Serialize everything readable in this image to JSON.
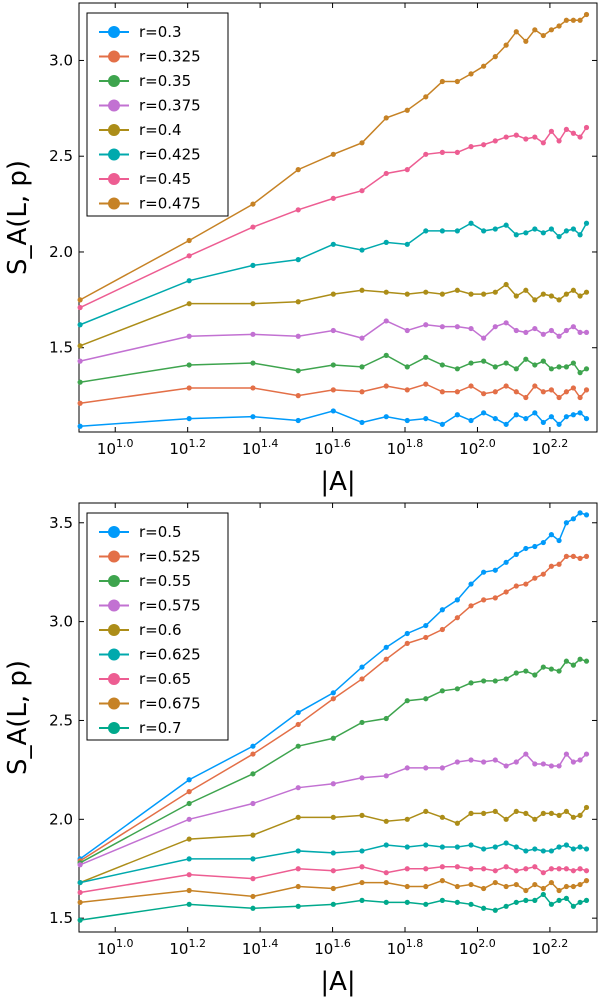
{
  "chart_data": [
    {
      "type": "line",
      "title": "",
      "xlabel": "|A|",
      "ylabel": "S_A(L, p)",
      "xscale": "log",
      "x_log10_range": [
        0.9,
        2.33
      ],
      "ylim": [
        1.06,
        3.3
      ],
      "x_ticks": [
        {
          "exp": 1.0,
          "base": "10",
          "sup": "1.0"
        },
        {
          "exp": 1.2,
          "base": "10",
          "sup": "1.2"
        },
        {
          "exp": 1.4,
          "base": "10",
          "sup": "1.4"
        },
        {
          "exp": 1.6,
          "base": "10",
          "sup": "1.6"
        },
        {
          "exp": 1.8,
          "base": "10",
          "sup": "1.8"
        },
        {
          "exp": 2.0,
          "base": "10",
          "sup": "2.0"
        },
        {
          "exp": 2.2,
          "base": "10",
          "sup": "2.2"
        }
      ],
      "y_ticks": [
        {
          "value": 1.5,
          "label": "1.5"
        },
        {
          "value": 2.0,
          "label": "2.0"
        },
        {
          "value": 2.5,
          "label": "2.5"
        },
        {
          "value": 3.0,
          "label": "3.0"
        }
      ],
      "legend_position": "top-left",
      "x": [
        8,
        16,
        24,
        32,
        40,
        48,
        56,
        64,
        72,
        80,
        88,
        96,
        104,
        112,
        120,
        128,
        136,
        144,
        152,
        160,
        168,
        176,
        184,
        192,
        200
      ],
      "series": [
        {
          "name": "r=0.3",
          "color": "#009AFA",
          "values": [
            1.09,
            1.13,
            1.14,
            1.12,
            1.17,
            1.11,
            1.14,
            1.12,
            1.13,
            1.1,
            1.15,
            1.12,
            1.16,
            1.13,
            1.1,
            1.15,
            1.13,
            1.16,
            1.11,
            1.14,
            1.1,
            1.14,
            1.15,
            1.16,
            1.13
          ]
        },
        {
          "name": "r=0.325",
          "color": "#E36F47",
          "values": [
            1.21,
            1.29,
            1.29,
            1.25,
            1.28,
            1.27,
            1.3,
            1.28,
            1.31,
            1.27,
            1.27,
            1.3,
            1.26,
            1.27,
            1.3,
            1.27,
            1.24,
            1.3,
            1.27,
            1.28,
            1.24,
            1.27,
            1.29,
            1.24,
            1.28
          ]
        },
        {
          "name": "r=0.35",
          "color": "#3EA44E",
          "values": [
            1.32,
            1.41,
            1.42,
            1.38,
            1.41,
            1.4,
            1.46,
            1.4,
            1.45,
            1.41,
            1.39,
            1.42,
            1.43,
            1.4,
            1.42,
            1.39,
            1.44,
            1.41,
            1.43,
            1.39,
            1.4,
            1.4,
            1.42,
            1.37,
            1.39
          ]
        },
        {
          "name": "r=0.375",
          "color": "#C271D2",
          "values": [
            1.43,
            1.56,
            1.57,
            1.56,
            1.59,
            1.55,
            1.64,
            1.59,
            1.62,
            1.61,
            1.61,
            1.6,
            1.55,
            1.61,
            1.63,
            1.59,
            1.58,
            1.6,
            1.57,
            1.59,
            1.56,
            1.59,
            1.61,
            1.58,
            1.58
          ]
        },
        {
          "name": "r=0.4",
          "color": "#AC8D18",
          "values": [
            1.51,
            1.73,
            1.73,
            1.74,
            1.78,
            1.8,
            1.79,
            1.78,
            1.79,
            1.78,
            1.8,
            1.78,
            1.78,
            1.79,
            1.83,
            1.77,
            1.8,
            1.75,
            1.78,
            1.77,
            1.75,
            1.78,
            1.8,
            1.77,
            1.79
          ]
        },
        {
          "name": "r=0.425",
          "color": "#00A9AD",
          "values": [
            1.62,
            1.85,
            1.93,
            1.96,
            2.04,
            2.01,
            2.05,
            2.04,
            2.11,
            2.11,
            2.11,
            2.15,
            2.11,
            2.12,
            2.14,
            2.09,
            2.1,
            2.12,
            2.1,
            2.12,
            2.08,
            2.11,
            2.12,
            2.09,
            2.15
          ]
        },
        {
          "name": "r=0.45",
          "color": "#ED5D92",
          "values": [
            1.71,
            1.98,
            2.13,
            2.22,
            2.28,
            2.32,
            2.41,
            2.43,
            2.51,
            2.52,
            2.52,
            2.55,
            2.56,
            2.58,
            2.6,
            2.61,
            2.59,
            2.6,
            2.57,
            2.63,
            2.58,
            2.64,
            2.62,
            2.6,
            2.65
          ]
        },
        {
          "name": "r=0.475",
          "color": "#C68225",
          "values": [
            1.75,
            2.06,
            2.25,
            2.43,
            2.51,
            2.57,
            2.7,
            2.74,
            2.81,
            2.89,
            2.89,
            2.93,
            2.97,
            3.02,
            3.08,
            3.15,
            3.1,
            3.16,
            3.13,
            3.16,
            3.18,
            3.21,
            3.21,
            3.21,
            3.24
          ]
        }
      ]
    },
    {
      "type": "line",
      "title": "",
      "xlabel": "|A|",
      "ylabel": "S_A(L, p)",
      "xscale": "log",
      "x_log10_range": [
        0.9,
        2.33
      ],
      "ylim": [
        1.43,
        3.6
      ],
      "x_ticks": [
        {
          "exp": 1.0,
          "base": "10",
          "sup": "1.0"
        },
        {
          "exp": 1.2,
          "base": "10",
          "sup": "1.2"
        },
        {
          "exp": 1.4,
          "base": "10",
          "sup": "1.4"
        },
        {
          "exp": 1.6,
          "base": "10",
          "sup": "1.6"
        },
        {
          "exp": 1.8,
          "base": "10",
          "sup": "1.8"
        },
        {
          "exp": 2.0,
          "base": "10",
          "sup": "2.0"
        },
        {
          "exp": 2.2,
          "base": "10",
          "sup": "2.2"
        }
      ],
      "y_ticks": [
        {
          "value": 1.5,
          "label": "1.5"
        },
        {
          "value": 2.0,
          "label": "2.0"
        },
        {
          "value": 2.5,
          "label": "2.5"
        },
        {
          "value": 3.0,
          "label": "3.0"
        },
        {
          "value": 3.5,
          "label": "3.5"
        }
      ],
      "legend_position": "top-left",
      "x": [
        8,
        16,
        24,
        32,
        40,
        48,
        56,
        64,
        72,
        80,
        88,
        96,
        104,
        112,
        120,
        128,
        136,
        144,
        152,
        160,
        168,
        176,
        184,
        192,
        200
      ],
      "series": [
        {
          "name": "r=0.5",
          "color": "#009AFA",
          "values": [
            1.8,
            2.2,
            2.37,
            2.54,
            2.64,
            2.77,
            2.87,
            2.94,
            2.98,
            3.06,
            3.11,
            3.19,
            3.25,
            3.26,
            3.3,
            3.34,
            3.37,
            3.38,
            3.4,
            3.44,
            3.41,
            3.5,
            3.52,
            3.55,
            3.54
          ]
        },
        {
          "name": "r=0.525",
          "color": "#E36F47",
          "values": [
            1.79,
            2.14,
            2.33,
            2.48,
            2.61,
            2.71,
            2.81,
            2.89,
            2.92,
            2.96,
            3.02,
            3.08,
            3.11,
            3.12,
            3.15,
            3.18,
            3.19,
            3.22,
            3.24,
            3.28,
            3.29,
            3.33,
            3.33,
            3.32,
            3.33
          ]
        },
        {
          "name": "r=0.55",
          "color": "#3EA44E",
          "values": [
            1.78,
            2.08,
            2.23,
            2.37,
            2.41,
            2.49,
            2.51,
            2.6,
            2.61,
            2.65,
            2.66,
            2.69,
            2.7,
            2.7,
            2.71,
            2.74,
            2.75,
            2.73,
            2.77,
            2.76,
            2.75,
            2.8,
            2.78,
            2.81,
            2.8
          ]
        },
        {
          "name": "r=0.575",
          "color": "#C271D2",
          "values": [
            1.77,
            2.0,
            2.08,
            2.16,
            2.18,
            2.21,
            2.22,
            2.26,
            2.26,
            2.26,
            2.29,
            2.3,
            2.29,
            2.3,
            2.27,
            2.29,
            2.33,
            2.28,
            2.28,
            2.27,
            2.27,
            2.33,
            2.29,
            2.3,
            2.33
          ]
        },
        {
          "name": "r=0.6",
          "color": "#AC8D18",
          "values": [
            1.68,
            1.9,
            1.92,
            2.01,
            2.01,
            2.02,
            1.99,
            2.0,
            2.04,
            2.01,
            1.98,
            2.03,
            2.03,
            2.04,
            2.0,
            2.04,
            2.03,
            2.0,
            2.03,
            2.03,
            2.02,
            2.04,
            2.01,
            2.02,
            2.06
          ]
        },
        {
          "name": "r=0.625",
          "color": "#00A9AD",
          "values": [
            1.68,
            1.8,
            1.8,
            1.84,
            1.83,
            1.84,
            1.87,
            1.86,
            1.87,
            1.86,
            1.86,
            1.87,
            1.85,
            1.86,
            1.88,
            1.86,
            1.84,
            1.85,
            1.84,
            1.84,
            1.86,
            1.87,
            1.85,
            1.86,
            1.85
          ]
        },
        {
          "name": "r=0.65",
          "color": "#ED5D92",
          "values": [
            1.63,
            1.72,
            1.7,
            1.75,
            1.74,
            1.76,
            1.73,
            1.75,
            1.75,
            1.76,
            1.76,
            1.75,
            1.75,
            1.74,
            1.76,
            1.74,
            1.75,
            1.76,
            1.73,
            1.75,
            1.75,
            1.75,
            1.74,
            1.75,
            1.74
          ]
        },
        {
          "name": "r=0.675",
          "color": "#C68225",
          "values": [
            1.58,
            1.64,
            1.61,
            1.66,
            1.65,
            1.68,
            1.68,
            1.66,
            1.66,
            1.69,
            1.66,
            1.67,
            1.65,
            1.68,
            1.66,
            1.67,
            1.64,
            1.67,
            1.65,
            1.68,
            1.64,
            1.66,
            1.66,
            1.67,
            1.69
          ]
        },
        {
          "name": "r=0.7",
          "color": "#00A98C",
          "values": [
            1.49,
            1.57,
            1.55,
            1.56,
            1.57,
            1.59,
            1.58,
            1.58,
            1.57,
            1.59,
            1.58,
            1.57,
            1.55,
            1.54,
            1.56,
            1.58,
            1.59,
            1.59,
            1.62,
            1.57,
            1.59,
            1.6,
            1.56,
            1.58,
            1.59
          ]
        }
      ]
    }
  ]
}
